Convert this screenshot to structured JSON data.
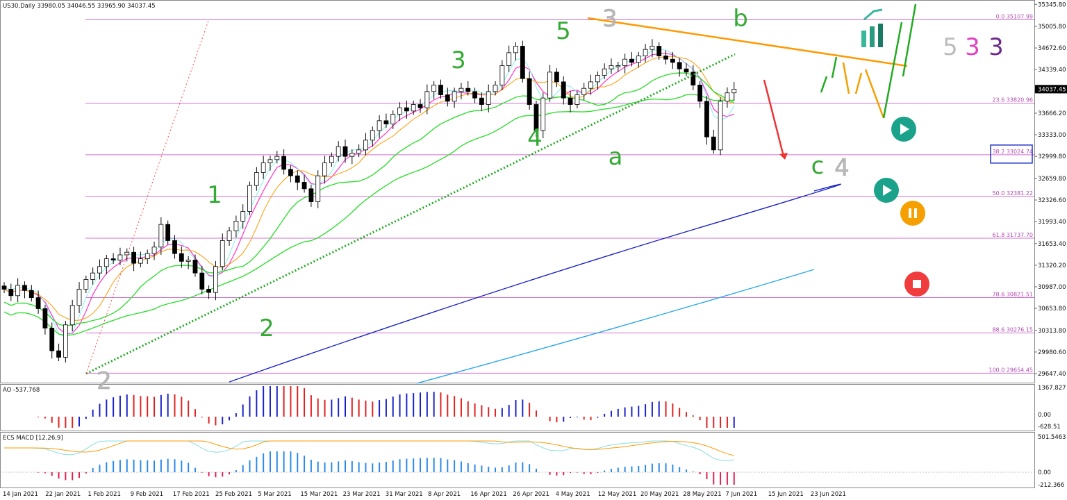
{
  "header": {
    "symbol_line": "US30,Daily  33980.05 34046.55 33965.90 34037.45"
  },
  "price_axis": {
    "ticks": [
      "35345.80",
      "35005.80",
      "34672.60",
      "34339.40",
      "34006.20",
      "33666.20",
      "33333.00",
      "32999.80",
      "32659.80",
      "32326.60",
      "31993.40",
      "31653.40",
      "31320.20",
      "30987.00",
      "30653.80",
      "30313.80",
      "29980.60",
      "29647.40"
    ],
    "current_price": "34037.45"
  },
  "fib_levels": [
    {
      "label": "0.0 35107.99",
      "value": 35107.99
    },
    {
      "label": "23.6 33820.96",
      "value": 33820.96
    },
    {
      "label": "38.2 33024.74",
      "value": 33024.74
    },
    {
      "label": "50.0 32381.22",
      "value": 32381.22
    },
    {
      "label": "61.8 31737.70",
      "value": 31737.7
    },
    {
      "label": "78.6 30821.51",
      "value": 30821.51
    },
    {
      "label": "88.6 30276.15",
      "value": 30276.15
    },
    {
      "label": "100.0 29654.45",
      "value": 29654.45
    }
  ],
  "date_axis": [
    "14 Jan 2021",
    "22 Jan 2021",
    "1 Feb 2021",
    "9 Feb 2021",
    "17 Feb 2021",
    "25 Feb 2021",
    "5 Mar 2021",
    "15 Mar 2021",
    "23 Mar 2021",
    "31 Mar 2021",
    "8 Apr 2021",
    "16 Apr 2021",
    "26 Apr 2021",
    "4 May 2021",
    "12 May 2021",
    "20 May 2021",
    "28 May 2021",
    "7 Jun 2021",
    "15 Jun 2021",
    "23 Jun 2021"
  ],
  "wave_labels": [
    {
      "text": "1",
      "color": "#33aa33"
    },
    {
      "text": "2",
      "color": "#33aa33"
    },
    {
      "text": "3",
      "color": "#33aa33"
    },
    {
      "text": "4",
      "color": "#33aa33"
    },
    {
      "text": "5",
      "color": "#33aa33"
    },
    {
      "text": "a",
      "color": "#33aa33"
    },
    {
      "text": "b",
      "color": "#33aa33"
    },
    {
      "text": "c",
      "color": "#33aa33"
    },
    {
      "text": "2",
      "color": "#bbbbbb"
    },
    {
      "text": "3",
      "color": "#bbbbbb"
    },
    {
      "text": "4",
      "color": "#bbbbbb"
    }
  ],
  "legend_labels": [
    {
      "text": "5",
      "color": "#bbbbbb"
    },
    {
      "text": "3",
      "color": "#e040c0"
    },
    {
      "text": "3",
      "color": "#6a2a8a"
    }
  ],
  "ao": {
    "title": "AO -537.768",
    "ticks": [
      "1367.827",
      "0.00",
      "-628.51"
    ]
  },
  "macd": {
    "title": "ECS MACD [12,26,9]",
    "ticks": [
      "501.5463",
      "0.00",
      "-212.366"
    ]
  },
  "colors": {
    "bull_candle": "#ffffff",
    "bear_candle": "#000000",
    "fib": "#d070d0",
    "ma_blue": "#1a22c8",
    "ma_cyan": "#2aa8e8",
    "ma_green": "#33dd33",
    "trend_dotted": "#22aa22",
    "resistance": "#ff9900",
    "ao_up": "#1a22c8",
    "ao_down": "#e02020",
    "play": "#1aa38a",
    "pause": "#f5a000",
    "stop": "#f03c3c"
  },
  "chart_data": {
    "type": "candlestick",
    "title": "US30,Daily",
    "price_range": [
      29500,
      35400
    ],
    "closes": [
      30950,
      30850,
      31010,
      30930,
      30820,
      30650,
      30350,
      30000,
      29900,
      30400,
      30700,
      30950,
      31100,
      31200,
      31300,
      31420,
      31400,
      31480,
      31520,
      31350,
      31420,
      31500,
      31600,
      31950,
      31700,
      31500,
      31380,
      31400,
      31200,
      30950,
      30900,
      31300,
      31700,
      31850,
      32000,
      32150,
      32550,
      32750,
      32900,
      32950,
      33000,
      32800,
      32700,
      32600,
      32500,
      32300,
      32700,
      32900,
      33000,
      33150,
      33000,
      33050,
      33100,
      33250,
      33400,
      33550,
      33500,
      33650,
      33750,
      33700,
      33800,
      33750,
      34000,
      34100,
      33950,
      33850,
      34000,
      34050,
      34000,
      33900,
      33800,
      34000,
      34100,
      34400,
      34600,
      34700,
      34200,
      33800,
      33400,
      33900,
      34300,
      34150,
      33900,
      33800,
      33950,
      34050,
      34150,
      34250,
      34350,
      34400,
      34400,
      34500,
      34450,
      34550,
      34650,
      34700,
      34550,
      34500,
      34450,
      34350,
      34300,
      34100,
      33850,
      33300,
      33100,
      33850,
      33980,
      34037
    ]
  }
}
